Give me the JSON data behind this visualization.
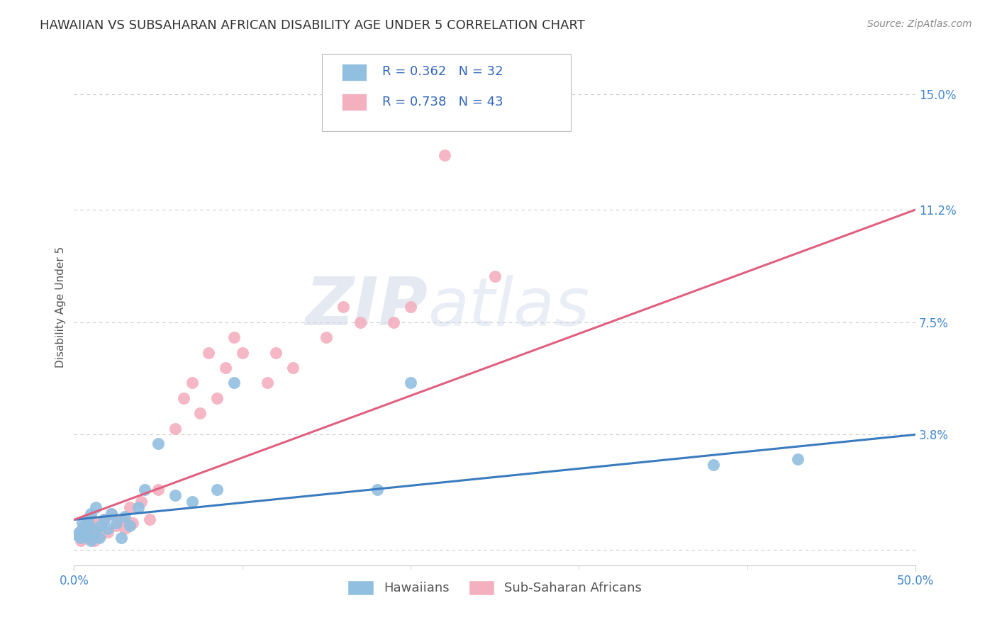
{
  "title": "HAWAIIAN VS SUBSAHARAN AFRICAN DISABILITY AGE UNDER 5 CORRELATION CHART",
  "source": "Source: ZipAtlas.com",
  "ylabel": "Disability Age Under 5",
  "xlim": [
    0.0,
    0.5
  ],
  "ylim": [
    -0.005,
    0.165
  ],
  "xtick_positions": [
    0.0,
    0.5
  ],
  "xticklabels": [
    "0.0%",
    "50.0%"
  ],
  "yticks": [
    0.0,
    0.038,
    0.075,
    0.112,
    0.15
  ],
  "yticklabels": [
    "",
    "3.8%",
    "7.5%",
    "11.2%",
    "15.0%"
  ],
  "grid_color": "#cccccc",
  "background_color": "#ffffff",
  "hawaiians_color": "#91bfe0",
  "subsaharan_color": "#f4b0bf",
  "hawaiians_line_color": "#3a7bbf",
  "subsaharan_line_color": "#e06080",
  "R_hawaiians": 0.362,
  "N_hawaiians": 32,
  "R_subsaharan": 0.738,
  "N_subsaharan": 43,
  "legend_label_hawaiians": "Hawaiians",
  "legend_label_subsaharan": "Sub-Saharan Africans",
  "hawaiians_trend": [
    0.01,
    0.038
  ],
  "subsaharan_trend": [
    0.01,
    0.112
  ],
  "hawaiians_x": [
    0.002,
    0.003,
    0.004,
    0.005,
    0.006,
    0.007,
    0.008,
    0.009,
    0.01,
    0.01,
    0.012,
    0.013,
    0.015,
    0.016,
    0.018,
    0.02,
    0.022,
    0.025,
    0.028,
    0.03,
    0.033,
    0.038,
    0.042,
    0.05,
    0.06,
    0.07,
    0.085,
    0.095,
    0.18,
    0.2,
    0.38,
    0.43
  ],
  "hawaiians_y": [
    0.005,
    0.006,
    0.004,
    0.009,
    0.007,
    0.005,
    0.01,
    0.008,
    0.003,
    0.012,
    0.006,
    0.014,
    0.004,
    0.008,
    0.01,
    0.007,
    0.012,
    0.009,
    0.004,
    0.011,
    0.008,
    0.014,
    0.02,
    0.035,
    0.018,
    0.016,
    0.02,
    0.055,
    0.02,
    0.055,
    0.028,
    0.03
  ],
  "subsaharan_x": [
    0.002,
    0.003,
    0.004,
    0.005,
    0.006,
    0.007,
    0.008,
    0.009,
    0.01,
    0.011,
    0.012,
    0.014,
    0.016,
    0.018,
    0.02,
    0.022,
    0.025,
    0.028,
    0.03,
    0.033,
    0.035,
    0.04,
    0.045,
    0.05,
    0.06,
    0.065,
    0.07,
    0.075,
    0.08,
    0.085,
    0.09,
    0.095,
    0.1,
    0.115,
    0.12,
    0.13,
    0.15,
    0.16,
    0.17,
    0.19,
    0.2,
    0.22,
    0.25
  ],
  "subsaharan_y": [
    0.005,
    0.006,
    0.003,
    0.007,
    0.005,
    0.008,
    0.004,
    0.009,
    0.006,
    0.01,
    0.003,
    0.008,
    0.005,
    0.01,
    0.006,
    0.012,
    0.008,
    0.01,
    0.007,
    0.014,
    0.009,
    0.016,
    0.01,
    0.02,
    0.04,
    0.05,
    0.055,
    0.045,
    0.065,
    0.05,
    0.06,
    0.07,
    0.065,
    0.055,
    0.065,
    0.06,
    0.07,
    0.08,
    0.075,
    0.075,
    0.08,
    0.13,
    0.09
  ],
  "watermark_zip": "ZIP",
  "watermark_atlas": "atlas",
  "title_fontsize": 13,
  "axis_label_fontsize": 11,
  "tick_fontsize": 12,
  "legend_fontsize": 13
}
